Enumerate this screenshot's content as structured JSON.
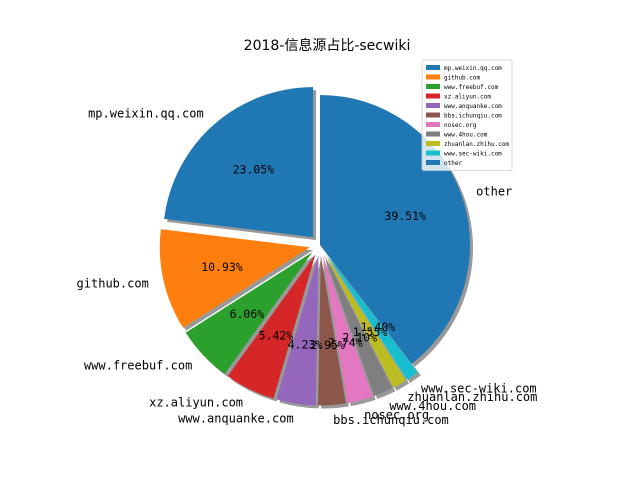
{
  "chart_data": {
    "type": "pie",
    "title": "2018-信息源占比-secwiki",
    "slices": [
      {
        "label": "mp.weixin.qq.com",
        "value": 23.05,
        "pct_label": "23.05%",
        "color": "#1f77b4",
        "exploded": true
      },
      {
        "label": "github.com",
        "value": 10.93,
        "pct_label": "10.93%",
        "color": "#ff7f0e",
        "exploded": true
      },
      {
        "label": "www.freebuf.com",
        "value": 6.06,
        "pct_label": "6.06%",
        "color": "#2ca02c",
        "exploded": true
      },
      {
        "label": "xz.aliyun.com",
        "value": 5.42,
        "pct_label": "5.42%",
        "color": "#d62728",
        "exploded": true
      },
      {
        "label": "www.anquanke.com",
        "value": 4.23,
        "pct_label": "4.23%",
        "color": "#9467bd",
        "exploded": true
      },
      {
        "label": "bbs.ichunqiu.com",
        "value": 2.95,
        "pct_label": "2.95%",
        "color": "#8c564b",
        "exploded": true
      },
      {
        "label": "nosec.org",
        "value": 2.74,
        "pct_label": "2.74%",
        "color": "#e377c2",
        "exploded": true
      },
      {
        "label": "www.4hou.com",
        "value": 2.1,
        "pct_label": "2.10%",
        "color": "#7f7f7f",
        "exploded": true
      },
      {
        "label": "zhuanlan.zhihu.com",
        "value": 1.55,
        "pct_label": "1.55%",
        "color": "#bcbd22",
        "exploded": true
      },
      {
        "label": "www.sec-wiki.com",
        "value": 1.4,
        "pct_label": "1.40%",
        "color": "#17becf",
        "exploded": true
      },
      {
        "label": "other",
        "value": 39.51,
        "pct_label": "39.51%",
        "color": "#1f77b4",
        "exploded": false
      }
    ],
    "start_angle_deg": 90,
    "direction": "counterclockwise",
    "shadow": true,
    "legend_position": "top-right"
  }
}
